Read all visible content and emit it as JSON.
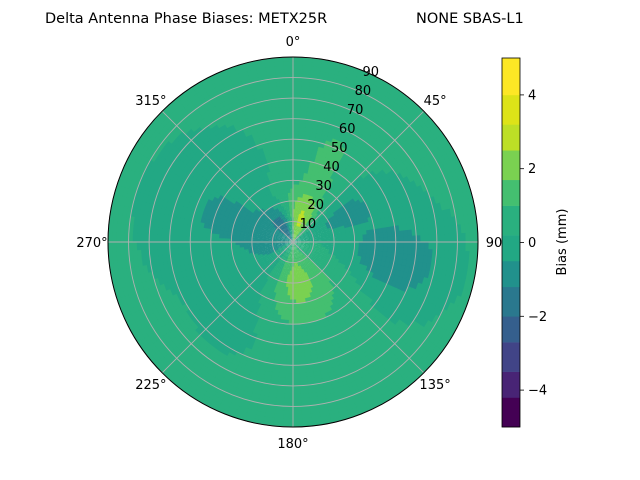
{
  "chart_data": {
    "type": "heatmap",
    "projection": "polar",
    "title_left": "Delta Antenna Phase Biases: METX25R",
    "title_right": "NONE SBAS-L1",
    "angular_ticks": [
      "0°",
      "45°",
      "90",
      "135°",
      "180°",
      "225°",
      "270°",
      "315°"
    ],
    "angular_tick_angles": [
      0,
      45,
      90,
      135,
      180,
      225,
      270,
      315
    ],
    "radial_ticks": [
      "10",
      "20",
      "30",
      "40",
      "50",
      "60",
      "70",
      "80",
      "90"
    ],
    "radial_tick_values": [
      10,
      20,
      30,
      40,
      50,
      60,
      70,
      80,
      90
    ],
    "rlim": [
      0,
      90
    ],
    "theta_zero": "top",
    "theta_direction": "clockwise",
    "grid": true,
    "colorbar": {
      "label": "Bias (mm)",
      "ticks": [
        "−4",
        "−2",
        "0",
        "2",
        "4"
      ],
      "tick_values": [
        -4,
        -2,
        0,
        2,
        4
      ],
      "range": [
        -5,
        5
      ],
      "levels": [
        -5,
        -4.2,
        -3.5,
        -2.7,
        -2,
        -1.2,
        -0.5,
        0.2,
        1,
        1.7,
        2.5,
        3.2,
        4,
        5
      ],
      "colors": [
        "#440154",
        "#482475",
        "#414487",
        "#355f8d",
        "#2a788e",
        "#21918c",
        "#22a884",
        "#2ab07f",
        "#44bf70",
        "#7ad151",
        "#bddf26",
        "#dde318",
        "#fde725"
      ]
    },
    "field": {
      "base": 0.4,
      "features": [
        {
          "az": 10,
          "el": 10,
          "amp": 2.4,
          "saz": 25,
          "sel": 10
        },
        {
          "az": 335,
          "el": 8,
          "amp": -2.6,
          "saz": 20,
          "sel": 8
        },
        {
          "az": 60,
          "el": 25,
          "amp": -1.2,
          "saz": 15,
          "sel": 20
        },
        {
          "az": 100,
          "el": 50,
          "amp": -1.5,
          "saz": 15,
          "sel": 18
        },
        {
          "az": 175,
          "el": 20,
          "amp": 1.6,
          "saz": 30,
          "sel": 15
        },
        {
          "az": 290,
          "el": 35,
          "amp": -1.0,
          "saz": 30,
          "sel": 25
        },
        {
          "az": 215,
          "el": 30,
          "amp": -0.8,
          "saz": 15,
          "sel": 20
        },
        {
          "az": 25,
          "el": 40,
          "amp": 0.8,
          "saz": 15,
          "sel": 20
        },
        {
          "az": 260,
          "el": 10,
          "amp": -0.9,
          "saz": 25,
          "sel": 10
        }
      ]
    }
  }
}
